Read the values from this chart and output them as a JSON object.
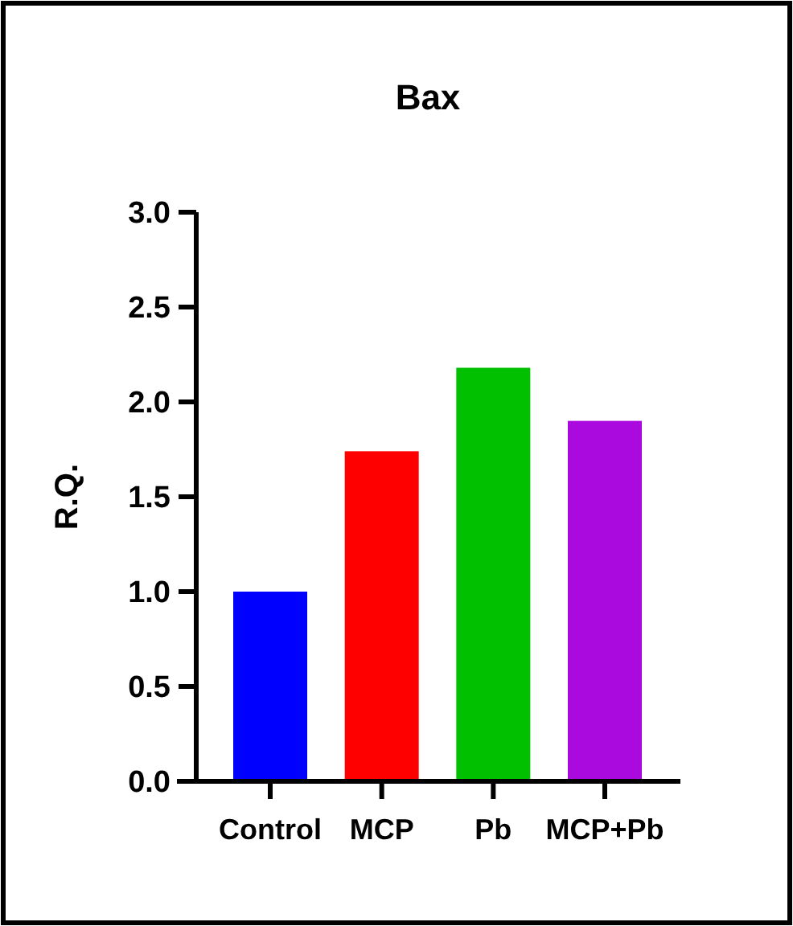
{
  "chart_data": {
    "type": "bar",
    "title": "Bax",
    "ylabel": "R.Q.",
    "categories": [
      "Control",
      "MCP",
      "Pb",
      "MCP+Pb"
    ],
    "values": [
      1.0,
      1.74,
      2.18,
      1.9
    ],
    "colors": [
      "#0000ff",
      "#ff0000",
      "#00c000",
      "#aa0ade"
    ],
    "ylim": [
      0,
      3
    ],
    "yticks": [
      {
        "value": 0,
        "label": "0.0"
      },
      {
        "value": 0.5,
        "label": "0.5"
      },
      {
        "value": 1,
        "label": "1.0"
      },
      {
        "value": 1.5,
        "label": "1.5"
      },
      {
        "value": 2,
        "label": "2.0"
      },
      {
        "value": 2.5,
        "label": "2.5"
      },
      {
        "value": 3,
        "label": "3.0"
      }
    ],
    "grid": false
  }
}
